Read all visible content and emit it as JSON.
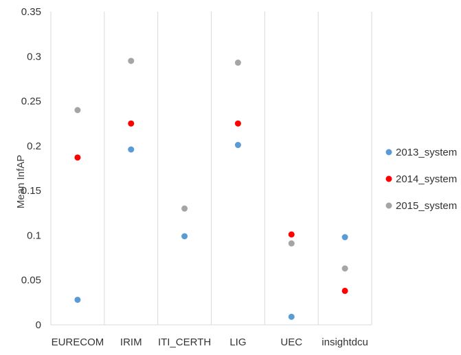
{
  "chart_data": {
    "type": "scatter",
    "title": "",
    "xlabel": "",
    "ylabel": "Mean InfAP",
    "categories": [
      "EURECOM",
      "IRIM",
      "ITI_CERTH",
      "LIG",
      "UEC",
      "insightdcu"
    ],
    "ylim": [
      0,
      0.35
    ],
    "yticks": [
      "0",
      "0.05",
      "0.1",
      "0.15",
      "0.2",
      "0.25",
      "0.3",
      "0.35"
    ],
    "grid": "vertical",
    "legend_position": "right",
    "series": [
      {
        "name": "2013_system",
        "color": "#5b9bd5",
        "values": [
          0.028,
          0.196,
          0.099,
          0.201,
          0.009,
          0.098
        ]
      },
      {
        "name": "2014_system",
        "color": "#ff0000",
        "values": [
          0.187,
          0.225,
          null,
          0.225,
          0.101,
          0.038
        ]
      },
      {
        "name": "2015_system",
        "color": "#a5a5a5",
        "values": [
          0.24,
          0.295,
          0.13,
          0.293,
          0.091,
          0.063
        ]
      }
    ]
  }
}
